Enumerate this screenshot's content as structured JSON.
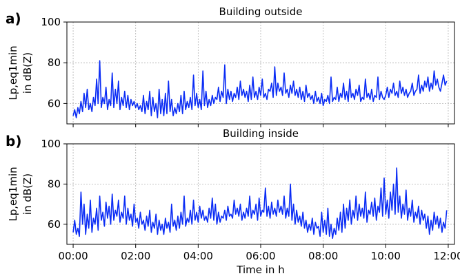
{
  "chart_data": [
    {
      "type": "line",
      "panel_label": "a)",
      "title": "Building outside",
      "ylabel_lines": [
        "Lp,eq1min",
        "in dB(Z)"
      ],
      "xlabel": "",
      "xlim": [
        -0.2,
        12.2
      ],
      "ylim": [
        50,
        100
      ],
      "yticks": [
        60,
        80,
        100
      ],
      "xticks": [
        0,
        2,
        4,
        6,
        8,
        10,
        12
      ],
      "xtick_labels": [
        "",
        "",
        "",
        "",
        "",
        "",
        ""
      ],
      "grid": true,
      "color": "#0a2cf5",
      "series": [
        {
          "x": [
            0.0,
            0.05,
            0.1,
            0.15,
            0.2,
            0.25,
            0.3,
            0.35,
            0.4,
            0.45,
            0.5,
            0.55,
            0.6,
            0.65,
            0.7,
            0.75,
            0.8,
            0.85,
            0.9,
            0.95,
            1.0,
            1.05,
            1.1,
            1.15,
            1.2,
            1.25,
            1.3,
            1.35,
            1.4,
            1.45,
            1.5,
            1.55,
            1.6,
            1.65,
            1.7,
            1.75,
            1.8,
            1.85,
            1.9,
            1.95,
            2.0,
            2.05,
            2.1,
            2.15,
            2.2,
            2.25,
            2.3,
            2.35,
            2.4,
            2.45,
            2.5,
            2.55,
            2.6,
            2.65,
            2.7,
            2.75,
            2.8,
            2.85,
            2.9,
            2.95,
            3.0,
            3.05,
            3.1,
            3.15,
            3.2,
            3.25,
            3.3,
            3.35,
            3.4,
            3.45,
            3.5,
            3.55,
            3.6,
            3.65,
            3.7,
            3.75,
            3.8,
            3.85,
            3.9,
            3.95,
            4.0,
            4.05,
            4.1,
            4.15,
            4.2,
            4.25,
            4.3,
            4.35,
            4.4,
            4.45,
            4.5,
            4.55,
            4.6,
            4.65,
            4.7,
            4.75,
            4.8,
            4.85,
            4.9,
            4.95,
            5.0,
            5.05,
            5.1,
            5.15,
            5.2,
            5.25,
            5.3,
            5.35,
            5.4,
            5.45,
            5.5,
            5.55,
            5.6,
            5.65,
            5.7,
            5.75,
            5.8,
            5.85,
            5.9,
            5.95,
            6.0,
            6.05,
            6.1,
            6.15,
            6.2,
            6.25,
            6.3,
            6.35,
            6.4,
            6.45,
            6.5,
            6.55,
            6.6,
            6.65,
            6.7,
            6.75,
            6.8,
            6.85,
            6.9,
            6.95,
            7.0,
            7.05,
            7.1,
            7.15,
            7.2,
            7.25,
            7.3,
            7.35,
            7.4,
            7.45,
            7.5,
            7.55,
            7.6,
            7.65,
            7.7,
            7.75,
            7.8,
            7.85,
            7.9,
            7.95,
            8.0,
            8.05,
            8.1,
            8.15,
            8.2,
            8.25,
            8.3,
            8.35,
            8.4,
            8.45,
            8.5,
            8.55,
            8.6,
            8.65,
            8.7,
            8.75,
            8.8,
            8.85,
            8.9,
            8.95,
            9.0,
            9.05,
            9.1,
            9.15,
            9.2,
            9.25,
            9.3,
            9.35,
            9.4,
            9.45,
            9.5,
            9.55,
            9.6,
            9.65,
            9.7,
            9.75,
            9.8,
            9.85,
            9.9,
            9.95,
            10.0,
            10.05,
            10.1,
            10.15,
            10.2,
            10.25,
            10.3,
            10.35,
            10.4,
            10.45,
            10.5,
            10.55,
            10.6,
            10.65,
            10.7,
            10.75,
            10.8,
            10.85,
            10.9,
            10.95,
            11.0,
            11.05,
            11.1,
            11.15,
            11.2,
            11.25,
            11.3,
            11.35,
            11.4,
            11.45,
            11.5,
            11.55,
            11.6,
            11.65,
            11.7,
            11.75,
            11.8,
            11.85,
            11.9,
            11.95
          ],
          "y": [
            54,
            57,
            53,
            58,
            55,
            61,
            56,
            65,
            58,
            67,
            57,
            60,
            56,
            63,
            59,
            72,
            60,
            81,
            58,
            63,
            60,
            68,
            57,
            62,
            59,
            75,
            58,
            67,
            60,
            71,
            57,
            63,
            59,
            66,
            58,
            64,
            57,
            62,
            59,
            61,
            58,
            60,
            57,
            59,
            56,
            64,
            55,
            61,
            57,
            66,
            54,
            63,
            56,
            60,
            53,
            67,
            55,
            62,
            54,
            65,
            55,
            71,
            56,
            62,
            54,
            58,
            55,
            60,
            56,
            64,
            55,
            66,
            57,
            61,
            58,
            63,
            57,
            74,
            59,
            65,
            58,
            62,
            57,
            76,
            59,
            66,
            58,
            62,
            59,
            64,
            60,
            63,
            62,
            68,
            61,
            66,
            63,
            79,
            60,
            67,
            62,
            66,
            61,
            65,
            63,
            68,
            62,
            71,
            64,
            67,
            63,
            66,
            61,
            69,
            62,
            73,
            63,
            66,
            62,
            68,
            64,
            72,
            63,
            65,
            62,
            67,
            66,
            70,
            63,
            78,
            64,
            70,
            66,
            68,
            64,
            75,
            65,
            67,
            63,
            69,
            65,
            71,
            64,
            67,
            63,
            68,
            62,
            66,
            61,
            69,
            63,
            65,
            62,
            64,
            60,
            66,
            61,
            63,
            60,
            65,
            59,
            62,
            61,
            64,
            60,
            73,
            61,
            63,
            62,
            68,
            61,
            65,
            63,
            70,
            62,
            66,
            61,
            72,
            63,
            65,
            62,
            67,
            64,
            69,
            61,
            63,
            62,
            72,
            63,
            65,
            62,
            67,
            61,
            64,
            63,
            73,
            62,
            66,
            63,
            62,
            64,
            68,
            63,
            67,
            65,
            70,
            64,
            66,
            63,
            71,
            65,
            68,
            64,
            67,
            63,
            65,
            66,
            70,
            64,
            66,
            67,
            74,
            65,
            69,
            66,
            71,
            68,
            73,
            66,
            70,
            67,
            76,
            69,
            72,
            68,
            66,
            70,
            74,
            69,
            71
          ]
        }
      ]
    },
    {
      "type": "line",
      "panel_label": "b)",
      "title": "Building inside",
      "ylabel_lines": [
        "Lp,eq1min",
        "in dB(Z)"
      ],
      "xlabel": "Time in h",
      "xlim": [
        -0.2,
        12.2
      ],
      "ylim": [
        50,
        100
      ],
      "yticks": [
        60,
        80,
        100
      ],
      "xticks": [
        0,
        2,
        4,
        6,
        8,
        10,
        12
      ],
      "xtick_labels": [
        "00:00",
        "02:00",
        "04:00",
        "06:00",
        "08:00",
        "10:00",
        "12:00"
      ],
      "grid": true,
      "color": "#0a2cf5",
      "series": [
        {
          "x": [
            0.0,
            0.05,
            0.1,
            0.15,
            0.2,
            0.25,
            0.3,
            0.35,
            0.4,
            0.45,
            0.5,
            0.55,
            0.6,
            0.65,
            0.7,
            0.75,
            0.8,
            0.85,
            0.9,
            0.95,
            1.0,
            1.05,
            1.1,
            1.15,
            1.2,
            1.25,
            1.3,
            1.35,
            1.4,
            1.45,
            1.5,
            1.55,
            1.6,
            1.65,
            1.7,
            1.75,
            1.8,
            1.85,
            1.9,
            1.95,
            2.0,
            2.05,
            2.1,
            2.15,
            2.2,
            2.25,
            2.3,
            2.35,
            2.4,
            2.45,
            2.5,
            2.55,
            2.6,
            2.65,
            2.7,
            2.75,
            2.8,
            2.85,
            2.9,
            2.95,
            3.0,
            3.05,
            3.1,
            3.15,
            3.2,
            3.25,
            3.3,
            3.35,
            3.4,
            3.45,
            3.5,
            3.55,
            3.6,
            3.65,
            3.7,
            3.75,
            3.8,
            3.85,
            3.9,
            3.95,
            4.0,
            4.05,
            4.1,
            4.15,
            4.2,
            4.25,
            4.3,
            4.35,
            4.4,
            4.45,
            4.5,
            4.55,
            4.6,
            4.65,
            4.7,
            4.75,
            4.8,
            4.85,
            4.9,
            4.95,
            5.0,
            5.05,
            5.1,
            5.15,
            5.2,
            5.25,
            5.3,
            5.35,
            5.4,
            5.45,
            5.5,
            5.55,
            5.6,
            5.65,
            5.7,
            5.75,
            5.8,
            5.85,
            5.9,
            5.95,
            6.0,
            6.05,
            6.1,
            6.15,
            6.2,
            6.25,
            6.3,
            6.35,
            6.4,
            6.45,
            6.5,
            6.55,
            6.6,
            6.65,
            6.7,
            6.75,
            6.8,
            6.85,
            6.9,
            6.95,
            7.0,
            7.05,
            7.1,
            7.15,
            7.2,
            7.25,
            7.3,
            7.35,
            7.4,
            7.45,
            7.5,
            7.55,
            7.6,
            7.65,
            7.7,
            7.75,
            7.8,
            7.85,
            7.9,
            7.95,
            8.0,
            8.05,
            8.1,
            8.15,
            8.2,
            8.25,
            8.3,
            8.35,
            8.4,
            8.45,
            8.5,
            8.55,
            8.6,
            8.65,
            8.7,
            8.75,
            8.8,
            8.85,
            8.9,
            8.95,
            9.0,
            9.05,
            9.1,
            9.15,
            9.2,
            9.25,
            9.3,
            9.35,
            9.4,
            9.45,
            9.5,
            9.55,
            9.6,
            9.65,
            9.7,
            9.75,
            9.8,
            9.85,
            9.9,
            9.95,
            10.0,
            10.05,
            10.1,
            10.15,
            10.2,
            10.25,
            10.3,
            10.35,
            10.4,
            10.45,
            10.5,
            10.55,
            10.6,
            10.65,
            10.7,
            10.75,
            10.8,
            10.85,
            10.9,
            10.95,
            11.0,
            11.05,
            11.1,
            11.15,
            11.2,
            11.25,
            11.3,
            11.35,
            11.4,
            11.45,
            11.5,
            11.55,
            11.6,
            11.65,
            11.7,
            11.75,
            11.8,
            11.85,
            11.9,
            11.95
          ],
          "y": [
            56,
            62,
            55,
            58,
            54,
            76,
            60,
            70,
            55,
            65,
            58,
            72,
            56,
            63,
            60,
            68,
            57,
            74,
            62,
            66,
            59,
            71,
            63,
            69,
            60,
            75,
            62,
            67,
            64,
            72,
            61,
            66,
            63,
            74,
            60,
            68,
            62,
            65,
            59,
            70,
            61,
            63,
            58,
            66,
            60,
            62,
            57,
            64,
            59,
            67,
            56,
            61,
            58,
            65,
            55,
            62,
            57,
            60,
            55,
            63,
            58,
            61,
            56,
            70,
            59,
            62,
            57,
            64,
            58,
            66,
            60,
            74,
            59,
            63,
            61,
            67,
            60,
            72,
            62,
            66,
            61,
            69,
            63,
            67,
            62,
            64,
            61,
            68,
            63,
            73,
            62,
            70,
            60,
            66,
            61,
            64,
            63,
            67,
            62,
            69,
            64,
            65,
            63,
            72,
            65,
            68,
            64,
            70,
            62,
            66,
            63,
            68,
            64,
            74,
            63,
            67,
            65,
            70,
            62,
            73,
            64,
            67,
            66,
            78,
            64,
            69,
            63,
            71,
            65,
            68,
            64,
            72,
            66,
            69,
            65,
            74,
            63,
            68,
            64,
            80,
            62,
            70,
            60,
            67,
            61,
            64,
            59,
            66,
            58,
            62,
            56,
            60,
            57,
            63,
            55,
            61,
            58,
            59,
            54,
            66,
            56,
            62,
            55,
            68,
            54,
            60,
            53,
            58,
            55,
            63,
            57,
            66,
            56,
            70,
            58,
            68,
            62,
            72,
            60,
            67,
            63,
            74,
            62,
            70,
            64,
            68,
            63,
            76,
            61,
            67,
            65,
            71,
            64,
            73,
            62,
            69,
            66,
            78,
            64,
            83,
            65,
            72,
            63,
            76,
            67,
            80,
            65,
            88,
            66,
            74,
            63,
            70,
            65,
            77,
            62,
            68,
            64,
            72,
            61,
            66,
            63,
            69,
            60,
            67,
            62,
            65,
            58,
            64,
            55,
            62,
            57,
            66,
            60,
            64,
            58,
            63,
            56,
            61,
            58,
            67
          ]
        }
      ]
    }
  ]
}
